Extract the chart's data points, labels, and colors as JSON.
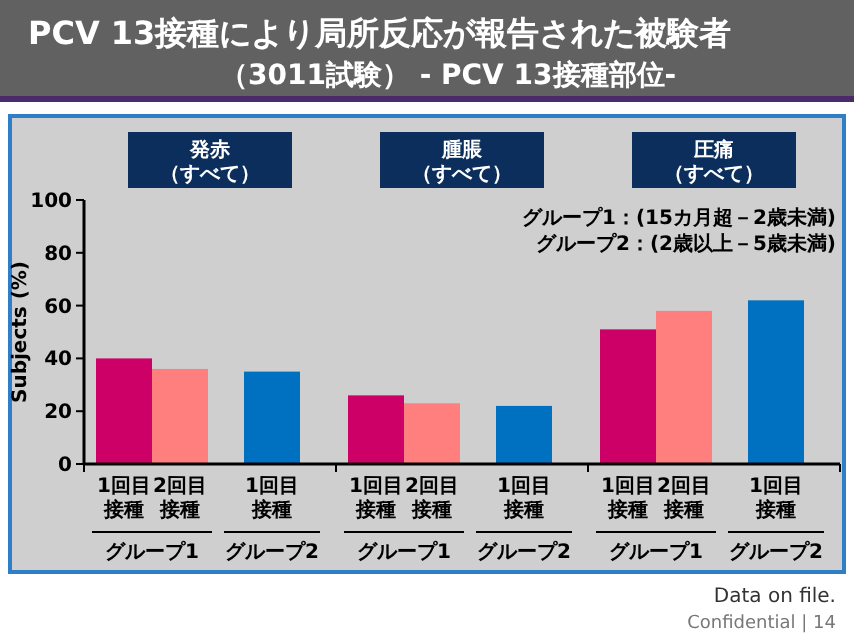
{
  "chart_data": {
    "type": "bar",
    "title": "PCV 13接種により局所反応が報告された被験者",
    "subtitle": "（3011試験） - PCV 13接種部位-",
    "ylabel": "Subjects (%)",
    "categories": [
      "1回目接種",
      "2回目接種",
      "1回目接種",
      "1回目接種",
      "2回目接種",
      "1回目接種",
      "1回目接種",
      "2回目接種",
      "1回目接種"
    ],
    "values": [
      40,
      36,
      35,
      26,
      23,
      22,
      51,
      58,
      62
    ],
    "colors": [
      "#cc0066",
      "#ff7f7f",
      "#0070c0",
      "#cc0066",
      "#ff7f7f",
      "#0070c0",
      "#cc0066",
      "#ff7f7f",
      "#0070c0"
    ],
    "ylim": [
      0,
      100
    ],
    "yticks": [
      0,
      20,
      40,
      60,
      80,
      100
    ],
    "grid": false,
    "annotations": [
      "発赤（すべて）",
      "腫脹（すべて）",
      "圧痛（すべて）",
      "グループ1",
      "グループ2",
      "グループ1",
      "グループ2",
      "グループ1",
      "グループ2",
      "グループ1：(15カ月超－2歳未満)",
      "グループ2：(2歳以上－5歳未満)",
      "Data on file.",
      "Confidential | 14"
    ]
  }
}
